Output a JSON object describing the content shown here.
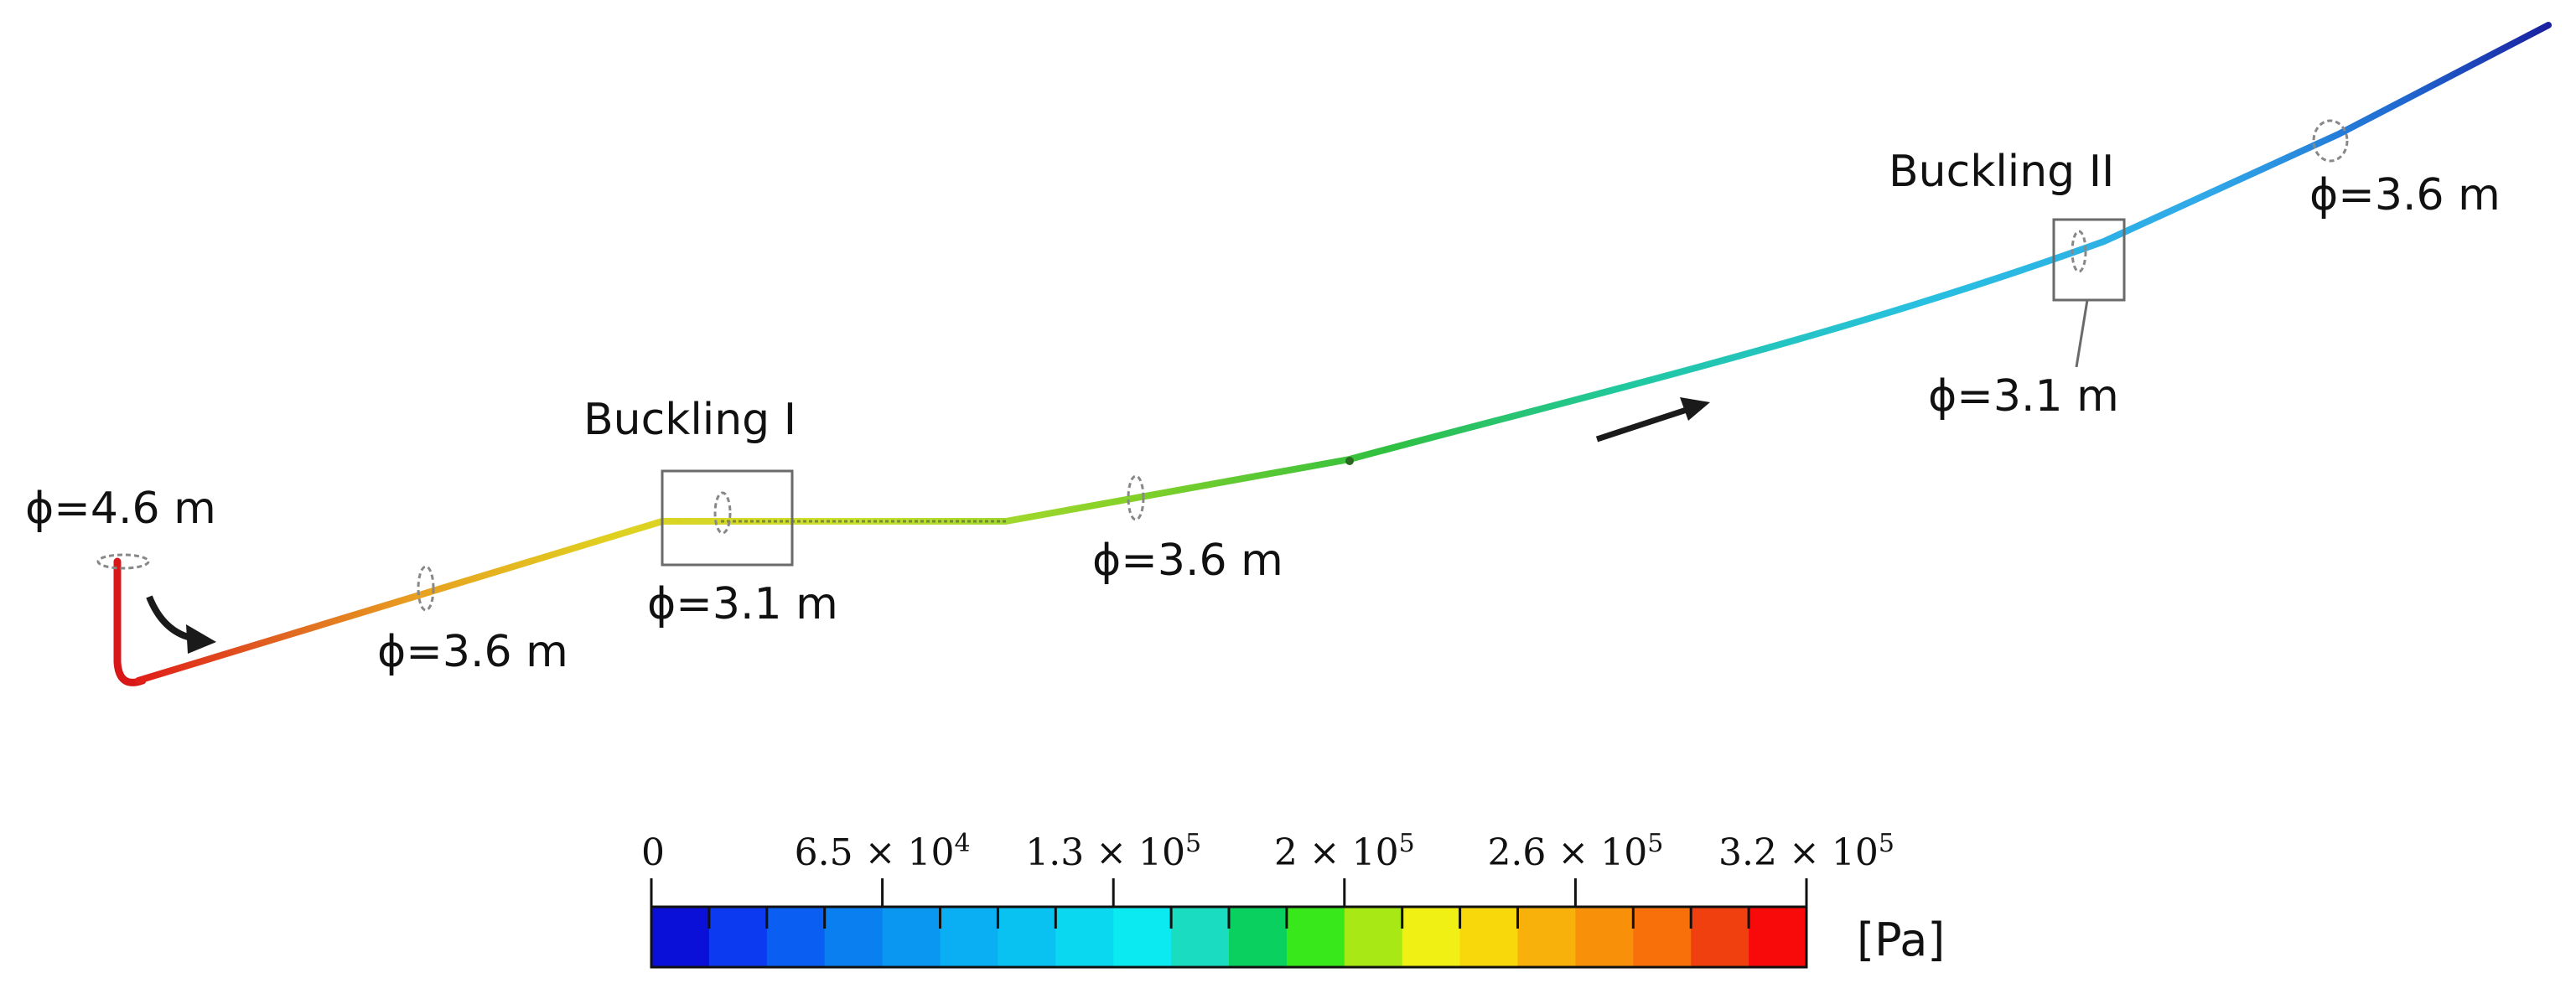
{
  "title_labels": {
    "buckling_1": "Buckling I",
    "buckling_2": "Buckling II"
  },
  "diameter_labels": {
    "inlet": "ϕ=4.6 m",
    "seg_a": "ϕ=3.6 m",
    "buckle_1": "ϕ=3.1 m",
    "seg_b": "ϕ=3.6 m",
    "buckle_2": "ϕ=3.1 m",
    "seg_c": "ϕ=3.6 m"
  },
  "colorbar": {
    "unit": "[Pa]",
    "min_label": "0",
    "tick_labels": [
      {
        "mantissa": "6.5",
        "exp": "4"
      },
      {
        "mantissa": "1.3",
        "exp": "5"
      },
      {
        "mantissa": "2",
        "exp": "5"
      },
      {
        "mantissa": "2.6",
        "exp": "5"
      },
      {
        "mantissa": "3.2",
        "exp": "5"
      }
    ],
    "times_symbol": "×",
    "base": "10",
    "colors": [
      "#0a10d8",
      "#0b3af0",
      "#0a5ef2",
      "#0a7ff0",
      "#0a97f2",
      "#0aaef2",
      "#0ac2f2",
      "#0ad8f0",
      "#0aeaf0",
      "#1adcc0",
      "#0ad060",
      "#38e81a",
      "#a8e814",
      "#f0f014",
      "#f8d80a",
      "#f8b00a",
      "#f8900a",
      "#f8700a",
      "#f04010",
      "#f80a0a"
    ]
  },
  "pipe_colors": {
    "inlet": "#e01818",
    "a": "#e8801a",
    "b": "#d8dc20",
    "c": "#a0d830",
    "d": "#30c040",
    "e": "#28c8b8",
    "f": "#28b0e8",
    "g": "#2070d8",
    "h": "#1a2aa8"
  }
}
